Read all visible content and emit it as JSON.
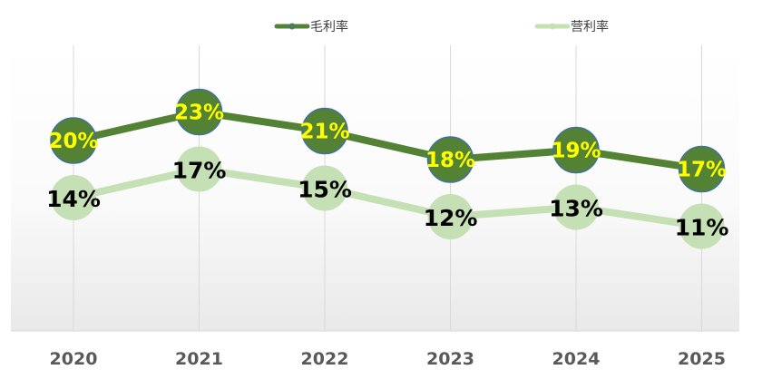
{
  "chart_data": {
    "type": "line",
    "title": "",
    "xlabel": "",
    "ylabel": "",
    "ylim": [
      0,
      0.3
    ],
    "grid": "vertical",
    "legend": "top",
    "categories": [
      "2020",
      "2021",
      "2022",
      "2023",
      "2024",
      "2025"
    ],
    "series": [
      {
        "name": "毛利率",
        "values": [
          0.2,
          0.23,
          0.21,
          0.18,
          0.19,
          0.17
        ],
        "labels": [
          "20%",
          "23%",
          "21%",
          "18%",
          "19%",
          "17%"
        ],
        "color": "#548235",
        "label_color": "#FFFF00",
        "marker_color": "#548235",
        "marker_edge": "#41719C"
      },
      {
        "name": "营利率",
        "values": [
          0.14,
          0.17,
          0.15,
          0.12,
          0.13,
          0.11
        ],
        "labels": [
          "14%",
          "17%",
          "15%",
          "12%",
          "13%",
          "11%"
        ],
        "color": "#C5E0B4",
        "label_color": "#000000",
        "marker_color": "#C5E0B4",
        "marker_edge": "#C5E0B4"
      }
    ]
  }
}
